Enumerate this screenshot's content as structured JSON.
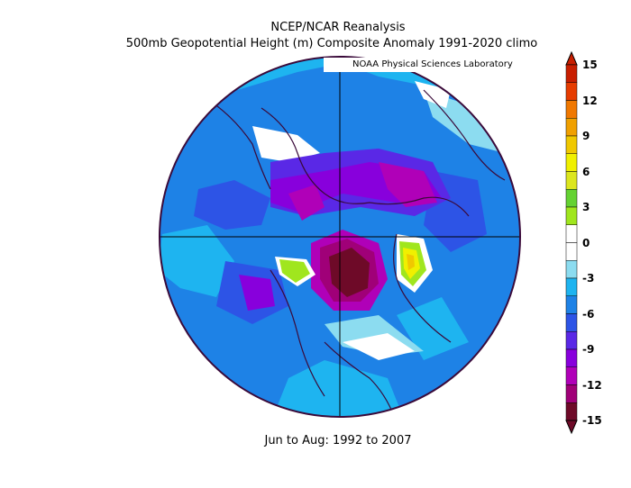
{
  "figure": {
    "title_line1": "NCEP/NCAR Reanalysis",
    "title_line2": "500mb Geopotential Height (m) Composite Anomaly 1991-2020 climo",
    "credit": "NOAA Physical Sciences Laboratory",
    "period": "Jun to Aug: 1992 to 2007"
  },
  "colorbar": {
    "labels": [
      "15",
      "12",
      "9",
      "6",
      "3",
      "0",
      "-3",
      "-6",
      "-9",
      "-12",
      "-15"
    ],
    "colors": [
      "#6e0a28",
      "#a00078",
      "#b000b8",
      "#8800dc",
      "#5a28e6",
      "#2d54e6",
      "#1e82e6",
      "#1eb4f0",
      "#8cdcf0",
      "#ffffff",
      "#ffffff",
      "#a0e61e",
      "#64d232",
      "#dce61e",
      "#f0f000",
      "#f0c800",
      "#f0a000",
      "#f07800",
      "#e63c00",
      "#c81e00"
    ]
  },
  "map_data": {
    "type": "polar-stereographic anomaly map",
    "variable": "500mb geopotential height anomaly (m)",
    "range": [
      -15,
      15
    ]
  }
}
